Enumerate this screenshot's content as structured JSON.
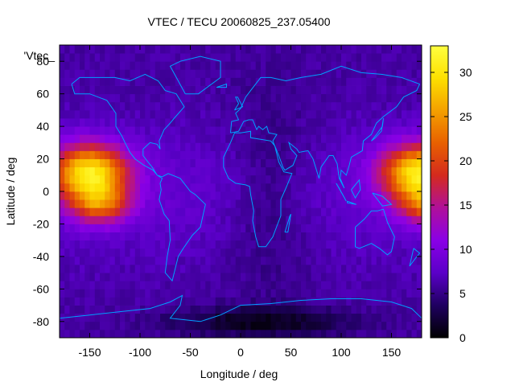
{
  "chart_data": {
    "type": "heatmap",
    "title": "VTEC / TECU 20060825_237.05400",
    "xlabel": "Longitude / deg",
    "ylabel": "Latitude / deg",
    "legend_key": "'Vtec_",
    "xlim": [
      -180,
      180
    ],
    "ylim": [
      -90,
      90
    ],
    "x_ticks": [
      -150,
      -100,
      -50,
      0,
      50,
      100,
      150
    ],
    "y_ticks": [
      -80,
      -60,
      -40,
      -20,
      0,
      20,
      40,
      60,
      80
    ],
    "colorbar": {
      "range": [
        0,
        33
      ],
      "ticks": [
        0,
        5,
        10,
        15,
        20,
        25,
        30
      ],
      "palette": [
        "#000000",
        "#1f0060",
        "#5a00c8",
        "#8a00e6",
        "#b0109a",
        "#d42a1e",
        "#e86000",
        "#f4a000",
        "#fde000",
        "#ffff40"
      ]
    },
    "grid_resolution_deg": [
      5,
      5
    ],
    "crests": [
      {
        "center_lon": -150,
        "center_lat": 12,
        "peak_vtec": 31
      },
      {
        "center_lon": 178,
        "center_lat": 12,
        "peak_vtec": 31
      }
    ],
    "background_vtec": {
      "equator_night": 8,
      "high_latitude": 6,
      "antarctic_minimum": 1
    },
    "coastline_color": "#00a0ff"
  }
}
